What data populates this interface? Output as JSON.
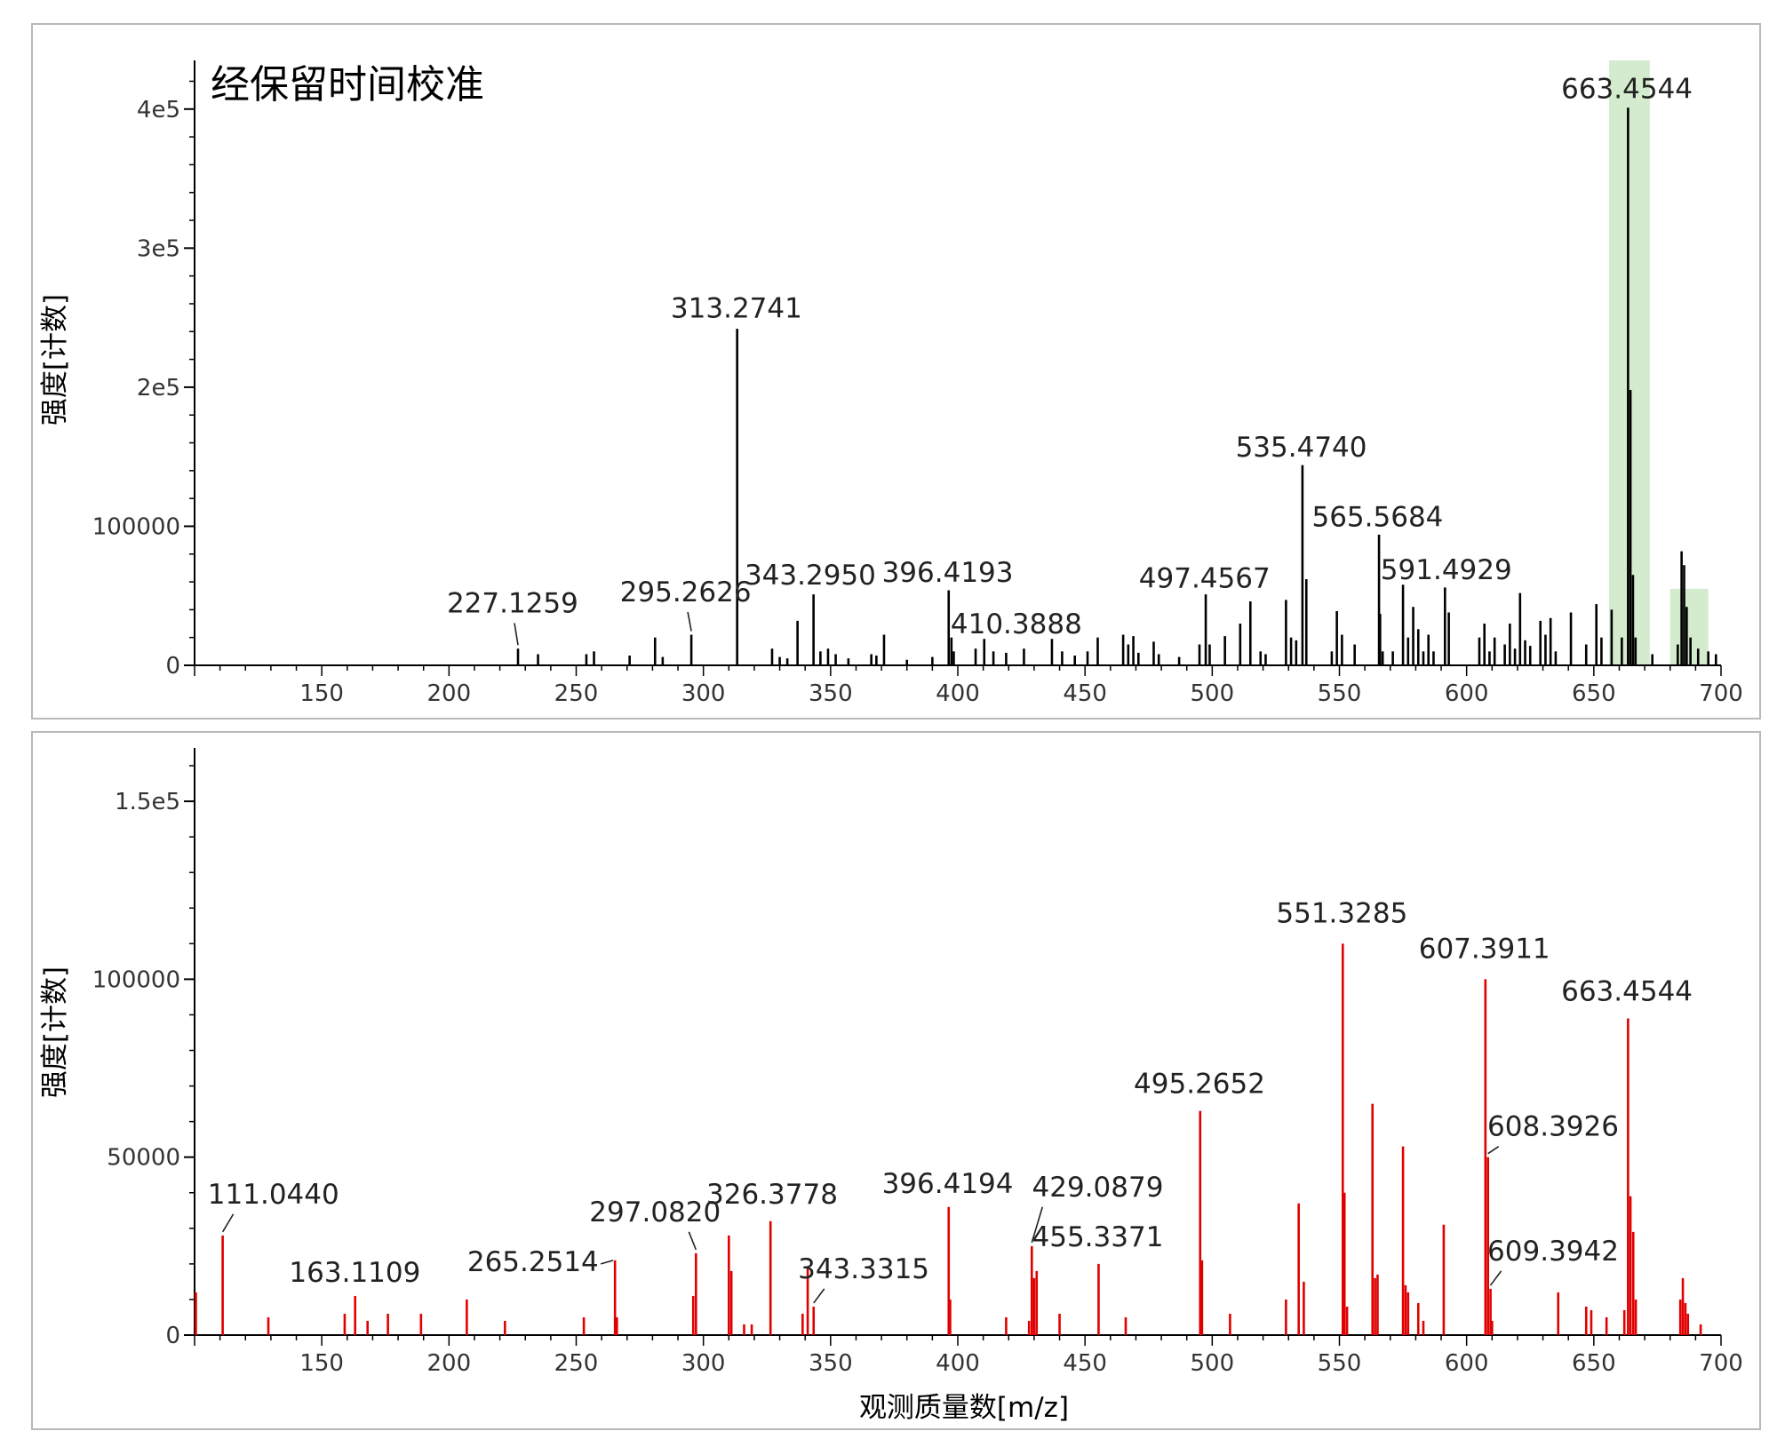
{
  "chart_data": [
    {
      "type": "bar",
      "title": "经保留时间校准",
      "ylabel": "强度[计数]",
      "xlabel": "",
      "xlim": [
        100,
        700
      ],
      "ylim": [
        0,
        435000
      ],
      "x_ticks": [
        150,
        200,
        250,
        300,
        350,
        400,
        450,
        500,
        550,
        600,
        650,
        700
      ],
      "y_ticks": [
        {
          "value": 0,
          "label": "0"
        },
        {
          "value": 100000,
          "label": "100000"
        },
        {
          "value": 200000,
          "label": "2e5"
        },
        {
          "value": 300000,
          "label": "3e5"
        },
        {
          "value": 400000,
          "label": "4e5"
        }
      ],
      "color": "#000000",
      "highlight_color": "#cde8c4",
      "highlights": [
        {
          "x0": 656,
          "x1": 672,
          "y1": 435000
        },
        {
          "x0": 680,
          "x1": 695,
          "y1": 55000
        }
      ],
      "peaks": [
        {
          "x": 227.1259,
          "y": 12000,
          "label": "227.1259",
          "label_x": 225,
          "label_y": 38000,
          "leader": true
        },
        {
          "x": 235,
          "y": 8000
        },
        {
          "x": 254,
          "y": 8000
        },
        {
          "x": 257,
          "y": 10000
        },
        {
          "x": 271,
          "y": 7000
        },
        {
          "x": 281,
          "y": 20000
        },
        {
          "x": 284,
          "y": 6000
        },
        {
          "x": 295.2626,
          "y": 22000,
          "label": "295.2626",
          "label_x": 293,
          "label_y": 46000,
          "leader": true
        },
        {
          "x": 313.2741,
          "y": 242000,
          "label": "313.2741",
          "label_x": 313,
          "label_y": 250000
        },
        {
          "x": 327,
          "y": 12000
        },
        {
          "x": 330,
          "y": 6000
        },
        {
          "x": 333,
          "y": 5000
        },
        {
          "x": 337,
          "y": 32000
        },
        {
          "x": 343.295,
          "y": 51000,
          "label": "343.2950",
          "label_x": 342,
          "label_y": 58000
        },
        {
          "x": 346,
          "y": 10000
        },
        {
          "x": 349,
          "y": 12000
        },
        {
          "x": 352,
          "y": 8000
        },
        {
          "x": 357,
          "y": 5000
        },
        {
          "x": 366,
          "y": 8000
        },
        {
          "x": 368,
          "y": 7000
        },
        {
          "x": 371,
          "y": 22000
        },
        {
          "x": 380,
          "y": 4000
        },
        {
          "x": 390,
          "y": 6000
        },
        {
          "x": 396.4193,
          "y": 54000,
          "label": "396.4193",
          "label_x": 396,
          "label_y": 60000
        },
        {
          "x": 397.5,
          "y": 20000
        },
        {
          "x": 398.4,
          "y": 10000
        },
        {
          "x": 410.3888,
          "y": 19000,
          "label": "410.3888",
          "label_x": 423,
          "label_y": 23000
        },
        {
          "x": 407,
          "y": 12000
        },
        {
          "x": 414,
          "y": 10000
        },
        {
          "x": 419,
          "y": 9000
        },
        {
          "x": 426,
          "y": 12000
        },
        {
          "x": 437,
          "y": 19000
        },
        {
          "x": 441,
          "y": 10000
        },
        {
          "x": 446,
          "y": 7000
        },
        {
          "x": 451,
          "y": 10000
        },
        {
          "x": 455,
          "y": 20000
        },
        {
          "x": 465,
          "y": 22000
        },
        {
          "x": 467,
          "y": 15000
        },
        {
          "x": 469,
          "y": 21000
        },
        {
          "x": 471,
          "y": 9000
        },
        {
          "x": 477,
          "y": 17000
        },
        {
          "x": 479,
          "y": 8000
        },
        {
          "x": 487,
          "y": 6000
        },
        {
          "x": 495,
          "y": 15000
        },
        {
          "x": 497.4567,
          "y": 51000,
          "label": "497.4567",
          "label_x": 497,
          "label_y": 56000
        },
        {
          "x": 499,
          "y": 15000
        },
        {
          "x": 505,
          "y": 21000
        },
        {
          "x": 511,
          "y": 30000
        },
        {
          "x": 515,
          "y": 46000
        },
        {
          "x": 519,
          "y": 10000
        },
        {
          "x": 521,
          "y": 8000
        },
        {
          "x": 529,
          "y": 47000
        },
        {
          "x": 531,
          "y": 20000
        },
        {
          "x": 533,
          "y": 18000
        },
        {
          "x": 535.474,
          "y": 144000,
          "label": "535.4740",
          "label_x": 535,
          "label_y": 150000
        },
        {
          "x": 537,
          "y": 62000
        },
        {
          "x": 547,
          "y": 10000
        },
        {
          "x": 549,
          "y": 39000
        },
        {
          "x": 551,
          "y": 22000
        },
        {
          "x": 556,
          "y": 15000
        },
        {
          "x": 565.5684,
          "y": 94000,
          "label": "565.5684",
          "label_x": 565,
          "label_y": 100000
        },
        {
          "x": 566,
          "y": 37000
        },
        {
          "x": 567,
          "y": 10000
        },
        {
          "x": 571,
          "y": 10000
        },
        {
          "x": 575,
          "y": 58000
        },
        {
          "x": 577,
          "y": 20000
        },
        {
          "x": 579,
          "y": 42000
        },
        {
          "x": 581,
          "y": 26000
        },
        {
          "x": 583,
          "y": 10000
        },
        {
          "x": 585,
          "y": 22000
        },
        {
          "x": 587,
          "y": 10000
        },
        {
          "x": 591.4929,
          "y": 56000,
          "label": "591.4929",
          "label_x": 592,
          "label_y": 62000
        },
        {
          "x": 593,
          "y": 38000
        },
        {
          "x": 605,
          "y": 20000
        },
        {
          "x": 607,
          "y": 30000
        },
        {
          "x": 609,
          "y": 10000
        },
        {
          "x": 611,
          "y": 20000
        },
        {
          "x": 615,
          "y": 15000
        },
        {
          "x": 617,
          "y": 30000
        },
        {
          "x": 619,
          "y": 12000
        },
        {
          "x": 621,
          "y": 52000
        },
        {
          "x": 623,
          "y": 18000
        },
        {
          "x": 625,
          "y": 14000
        },
        {
          "x": 629,
          "y": 32000
        },
        {
          "x": 631,
          "y": 22000
        },
        {
          "x": 633,
          "y": 34000
        },
        {
          "x": 635,
          "y": 10000
        },
        {
          "x": 641,
          "y": 38000
        },
        {
          "x": 647,
          "y": 15000
        },
        {
          "x": 651,
          "y": 44000
        },
        {
          "x": 653,
          "y": 20000
        },
        {
          "x": 657,
          "y": 40000
        },
        {
          "x": 661,
          "y": 20000
        },
        {
          "x": 663.4544,
          "y": 401000,
          "label": "663.4544",
          "label_x": 663,
          "label_y": 408000
        },
        {
          "x": 664.4,
          "y": 198000
        },
        {
          "x": 665.4,
          "y": 65000
        },
        {
          "x": 666.4,
          "y": 20000
        },
        {
          "x": 673,
          "y": 8000
        },
        {
          "x": 683,
          "y": 15000
        },
        {
          "x": 684.5,
          "y": 82000
        },
        {
          "x": 685.5,
          "y": 72000
        },
        {
          "x": 686.5,
          "y": 42000
        },
        {
          "x": 688,
          "y": 20000
        },
        {
          "x": 691,
          "y": 12000
        },
        {
          "x": 695,
          "y": 10000
        },
        {
          "x": 698,
          "y": 8000
        }
      ]
    },
    {
      "type": "bar",
      "title": "",
      "ylabel": "强度[计数]",
      "xlabel": "观测质量数[m/z]",
      "xlim": [
        100,
        700
      ],
      "ylim": [
        0,
        165000
      ],
      "x_ticks": [
        150,
        200,
        250,
        300,
        350,
        400,
        450,
        500,
        550,
        600,
        650,
        700
      ],
      "y_ticks": [
        {
          "value": 0,
          "label": "0"
        },
        {
          "value": 50000,
          "label": "50000"
        },
        {
          "value": 100000,
          "label": "100000"
        },
        {
          "value": 150000,
          "label": "1.5e5"
        }
      ],
      "color": "#e00000",
      "highlights": [],
      "peaks": [
        {
          "x": 100.5,
          "y": 12000
        },
        {
          "x": 111.044,
          "y": 28000,
          "label": "111.0440",
          "label_x": 131,
          "label_y": 37000,
          "leader": true
        },
        {
          "x": 129,
          "y": 5000
        },
        {
          "x": 159,
          "y": 6000
        },
        {
          "x": 163.1109,
          "y": 11000,
          "label": "163.1109",
          "label_x": 163,
          "label_y": 15000
        },
        {
          "x": 168,
          "y": 4000
        },
        {
          "x": 176,
          "y": 6000
        },
        {
          "x": 189,
          "y": 6000
        },
        {
          "x": 207,
          "y": 10000
        },
        {
          "x": 222,
          "y": 4000
        },
        {
          "x": 253,
          "y": 5000
        },
        {
          "x": 265.2514,
          "y": 21000,
          "label": "265.2514",
          "label_x": 233,
          "label_y": 18000,
          "leader_h": true
        },
        {
          "x": 266,
          "y": 5000
        },
        {
          "x": 296,
          "y": 11000
        },
        {
          "x": 297.082,
          "y": 23000,
          "label": "297.0820",
          "label_x": 281,
          "label_y": 32000,
          "leader": true
        },
        {
          "x": 310,
          "y": 28000
        },
        {
          "x": 311,
          "y": 18000
        },
        {
          "x": 316,
          "y": 3000
        },
        {
          "x": 319,
          "y": 3000
        },
        {
          "x": 326.3778,
          "y": 32000,
          "label": "326.3778",
          "label_x": 327,
          "label_y": 37000
        },
        {
          "x": 339,
          "y": 6000
        },
        {
          "x": 341,
          "y": 19000
        },
        {
          "x": 343.3315,
          "y": 8000,
          "label": "343.3315",
          "label_x": 363,
          "label_y": 16000,
          "leader": true
        },
        {
          "x": 396.4194,
          "y": 36000,
          "label": "396.4194",
          "label_x": 396,
          "label_y": 40000
        },
        {
          "x": 397,
          "y": 10000
        },
        {
          "x": 419,
          "y": 5000
        },
        {
          "x": 428,
          "y": 4000
        },
        {
          "x": 429.0879,
          "y": 25000,
          "label": "429.0879",
          "label_x": 455,
          "label_y": 39000,
          "leader": true
        },
        {
          "x": 430,
          "y": 16000
        },
        {
          "x": 431,
          "y": 18000
        },
        {
          "x": 440,
          "y": 6000
        },
        {
          "x": 455.3371,
          "y": 20000,
          "label": "455.3371",
          "label_x": 455,
          "label_y": 25000
        },
        {
          "x": 466,
          "y": 5000
        },
        {
          "x": 495.2652,
          "y": 63000,
          "label": "495.2652",
          "label_x": 495,
          "label_y": 68000
        },
        {
          "x": 496,
          "y": 21000
        },
        {
          "x": 507,
          "y": 6000
        },
        {
          "x": 529,
          "y": 10000
        },
        {
          "x": 534,
          "y": 37000
        },
        {
          "x": 536,
          "y": 15000
        },
        {
          "x": 551.3285,
          "y": 110000,
          "label": "551.3285",
          "label_x": 551,
          "label_y": 116000
        },
        {
          "x": 552,
          "y": 40000
        },
        {
          "x": 553,
          "y": 8000
        },
        {
          "x": 563,
          "y": 65000
        },
        {
          "x": 564,
          "y": 16000
        },
        {
          "x": 565,
          "y": 17000
        },
        {
          "x": 575,
          "y": 53000
        },
        {
          "x": 576,
          "y": 14000
        },
        {
          "x": 577,
          "y": 12000
        },
        {
          "x": 581,
          "y": 9000
        },
        {
          "x": 583,
          "y": 4000
        },
        {
          "x": 591,
          "y": 31000
        },
        {
          "x": 607.3911,
          "y": 100000,
          "label": "607.3911",
          "label_x": 607,
          "label_y": 106000
        },
        {
          "x": 608.3926,
          "y": 50000,
          "label": "608.3926",
          "label_x": 634,
          "label_y": 56000,
          "leader": true
        },
        {
          "x": 609.3942,
          "y": 13000,
          "label": "609.3942",
          "label_x": 634,
          "label_y": 21000,
          "leader": true
        },
        {
          "x": 610,
          "y": 4000
        },
        {
          "x": 636,
          "y": 12000
        },
        {
          "x": 647,
          "y": 8000
        },
        {
          "x": 649,
          "y": 7000
        },
        {
          "x": 655,
          "y": 5000
        },
        {
          "x": 662,
          "y": 7000
        },
        {
          "x": 663.4544,
          "y": 89000,
          "label": "663.4544",
          "label_x": 663,
          "label_y": 94000
        },
        {
          "x": 664.4,
          "y": 39000
        },
        {
          "x": 665.5,
          "y": 29000
        },
        {
          "x": 666.5,
          "y": 10000
        },
        {
          "x": 684,
          "y": 10000
        },
        {
          "x": 685,
          "y": 16000
        },
        {
          "x": 686,
          "y": 9000
        },
        {
          "x": 687,
          "y": 6000
        },
        {
          "x": 692,
          "y": 3000
        }
      ]
    }
  ]
}
